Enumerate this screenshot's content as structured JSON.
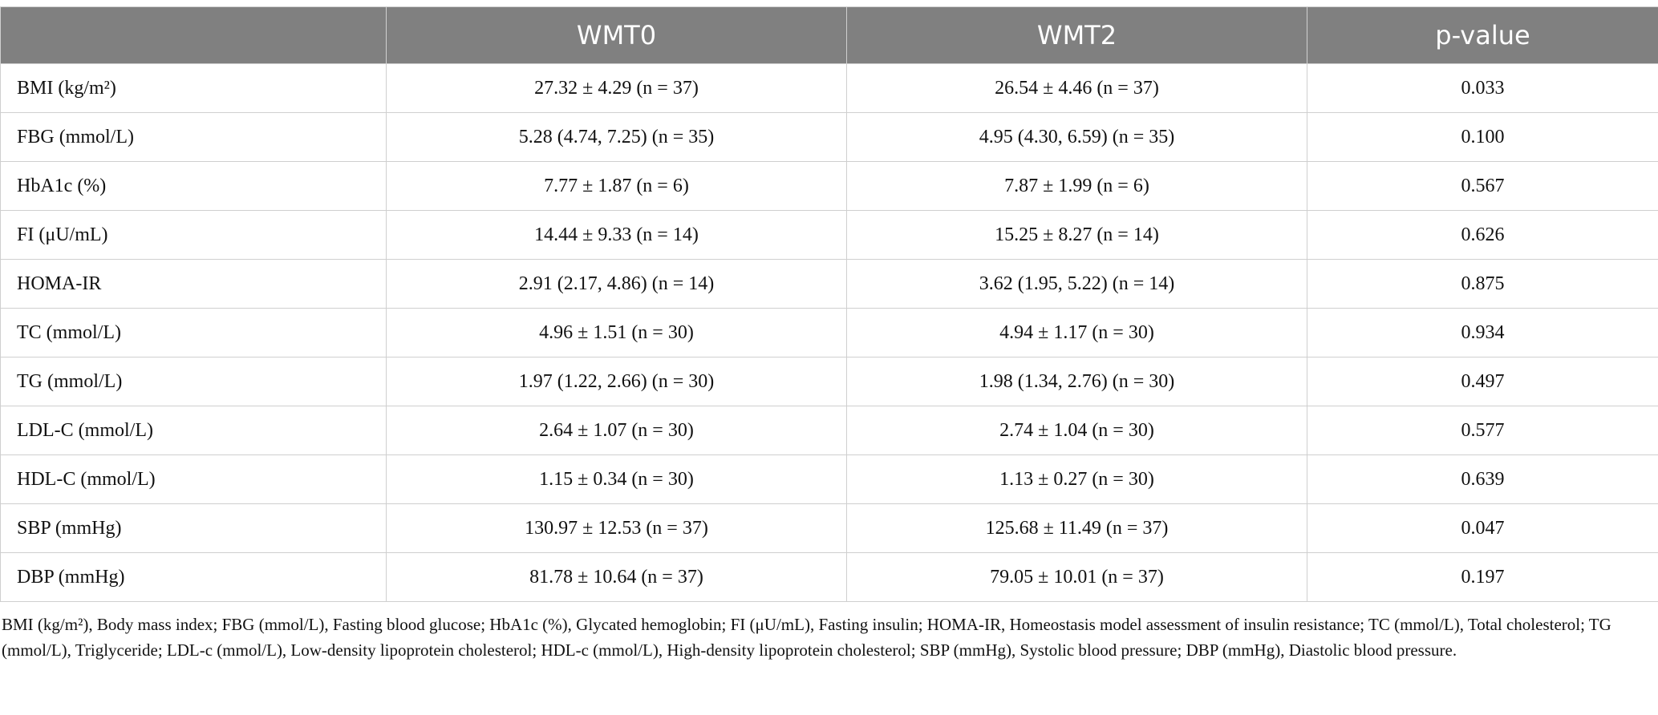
{
  "table": {
    "header": [
      "WMT0",
      "WMT2",
      "p-value"
    ],
    "rows": [
      [
        "BMI (kg/m²)",
        "27.32 ± 4.29 (n = 37)",
        "26.54 ± 4.46 (n = 37)",
        "0.033"
      ],
      [
        "FBG (mmol/L)",
        "5.28 (4.74, 7.25) (n = 35)",
        "4.95 (4.30, 6.59) (n = 35)",
        "0.100"
      ],
      [
        "HbA1c (%)",
        "7.77 ± 1.87 (n = 6)",
        "7.87 ± 1.99 (n = 6)",
        "0.567"
      ],
      [
        "FI (μU/mL)",
        "14.44 ± 9.33 (n = 14)",
        "15.25 ± 8.27 (n = 14)",
        "0.626"
      ],
      [
        "HOMA-IR",
        "2.91 (2.17, 4.86) (n = 14)",
        "3.62 (1.95, 5.22) (n = 14)",
        "0.875"
      ],
      [
        "TC (mmol/L)",
        "4.96 ± 1.51 (n = 30)",
        "4.94 ± 1.17 (n = 30)",
        "0.934"
      ],
      [
        "TG (mmol/L)",
        "1.97 (1.22, 2.66) (n = 30)",
        "1.98 (1.34, 2.76) (n = 30)",
        "0.497"
      ],
      [
        "LDL-C (mmol/L)",
        "2.64 ± 1.07 (n = 30)",
        "2.74 ± 1.04 (n = 30)",
        "0.577"
      ],
      [
        "HDL-C (mmol/L)",
        "1.15 ± 0.34 (n = 30)",
        "1.13 ± 0.27 (n = 30)",
        "0.639"
      ],
      [
        "SBP (mmHg)",
        "130.97 ± 12.53 (n = 37)",
        "125.68 ± 11.49 (n = 37)",
        "0.047"
      ],
      [
        "DBP (mmHg)",
        "81.78 ± 10.64 (n = 37)",
        "79.05 ± 10.01 (n = 37)",
        "0.197"
      ]
    ]
  },
  "footnote": "BMI (kg/m²), Body mass index; FBG (mmol/L), Fasting blood glucose; HbA1c (%), Glycated hemoglobin; FI (μU/mL), Fasting insulin; HOMA-IR, Homeostasis model assessment of insulin resistance; TC (mmol/L), Total cholesterol; TG (mmol/L), Triglyceride; LDL-c (mmol/L), Low-density lipoprotein cholesterol; HDL-c (mmol/L), High-density lipoprotein cholesterol; SBP (mmHg), Systolic blood pressure; DBP (mmHg), Diastolic blood pressure."
}
